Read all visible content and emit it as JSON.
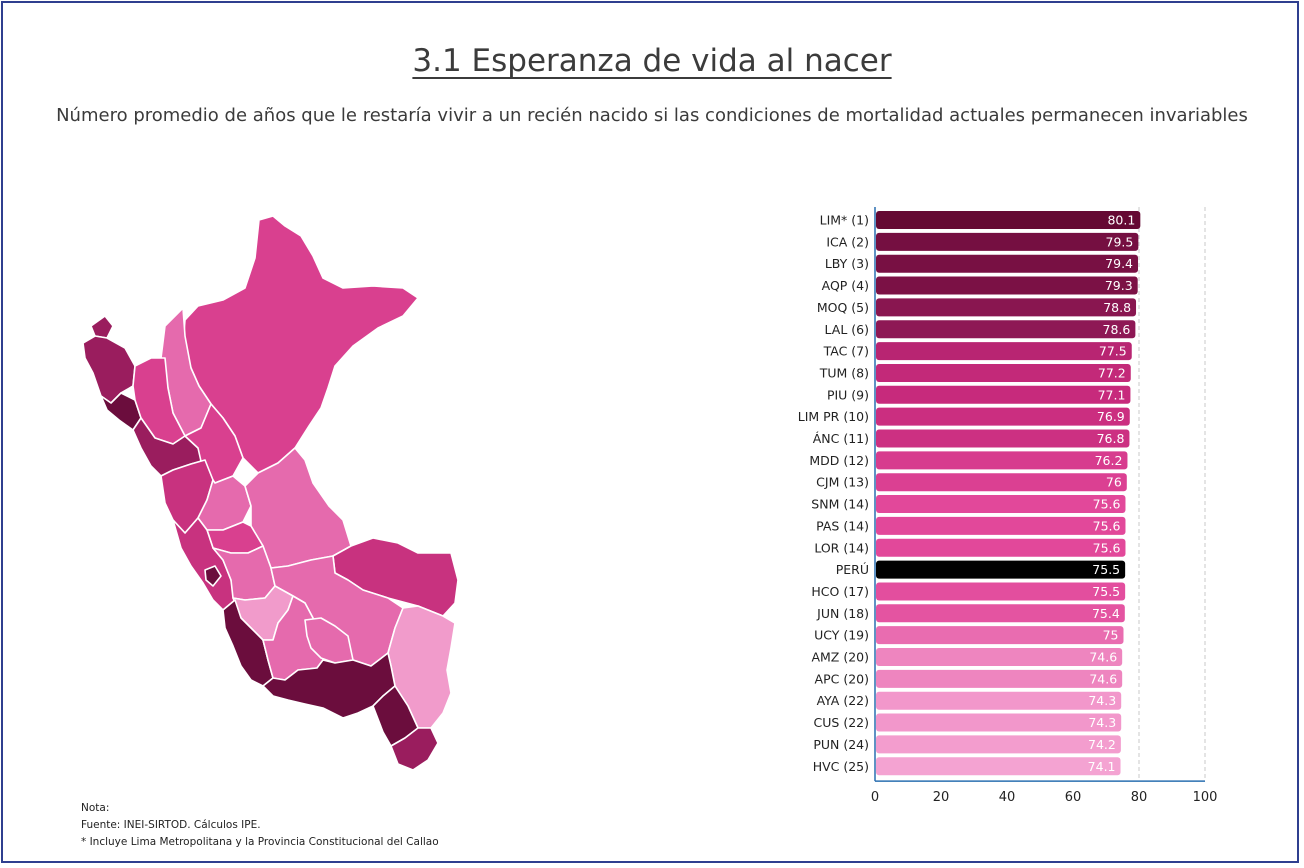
{
  "header": {
    "title": "3.1 Esperanza de vida al nacer",
    "subtitle": "Número promedio de años que le restaría vivir a un recién nacido si las condiciones de mortalidad actuales permanecen invariables"
  },
  "chart_data": {
    "type": "bar",
    "orientation": "horizontal",
    "categories": [
      "LIM* (1)",
      "ICA (2)",
      "LBY (3)",
      "AQP (4)",
      "MOQ (5)",
      "LAL (6)",
      "TAC (7)",
      "TUM (8)",
      "PIU (9)",
      "LIM PR (10)",
      "ÁNC (11)",
      "MDD (12)",
      "CJM (13)",
      "SNM (14)",
      "PAS (14)",
      "LOR (14)",
      "PERÚ",
      "HCO (17)",
      "JUN (18)",
      "UCY (19)",
      "AMZ (20)",
      "APC (20)",
      "AYA (22)",
      "CUS (22)",
      "PUN (24)",
      "HVC (25)"
    ],
    "values": [
      80.1,
      79.5,
      79.4,
      79.3,
      78.8,
      78.6,
      77.5,
      77.2,
      77.1,
      76.9,
      76.8,
      76.2,
      76,
      75.6,
      75.6,
      75.6,
      75.5,
      75.5,
      75.4,
      75,
      74.6,
      74.6,
      74.3,
      74.3,
      74.2,
      74.1
    ],
    "value_labels": [
      "80.1",
      "79.5",
      "79.4",
      "79.3",
      "78.8",
      "78.6",
      "77.5",
      "77.2",
      "77.1",
      "76.9",
      "76.8",
      "76.2",
      "76",
      "75.6",
      "75.6",
      "75.6",
      "75.5",
      "75.5",
      "75.4",
      "75",
      "74.6",
      "74.6",
      "74.3",
      "74.3",
      "74.2",
      "74.1"
    ],
    "highlight_category": "PERÚ",
    "highlight_color": "#000000",
    "color_scale": [
      "#650933",
      "#8e1855",
      "#c72a7c",
      "#e2489a",
      "#f4a3d2"
    ],
    "xlim": [
      0,
      100
    ],
    "x_ticks": [
      "0",
      "20",
      "40",
      "60",
      "80",
      "100"
    ],
    "grid": "dashed vertical at 80 and 100",
    "xlabel": "",
    "ylabel": ""
  },
  "map": {
    "colors": {
      "darkest": "#6b0d3d",
      "dark": "#9a1d5e",
      "medium": "#c8327f",
      "light": "#d9408f",
      "lighter": "#e56aad",
      "lightest": "#f19bcb"
    }
  },
  "notes": {
    "label": "Nota:",
    "source": "Fuente: INEI-SIRTOD. Cálculos IPE.",
    "footnote": "* Incluye Lima Metropolitana y la Provincia Constitucional del Callao"
  }
}
